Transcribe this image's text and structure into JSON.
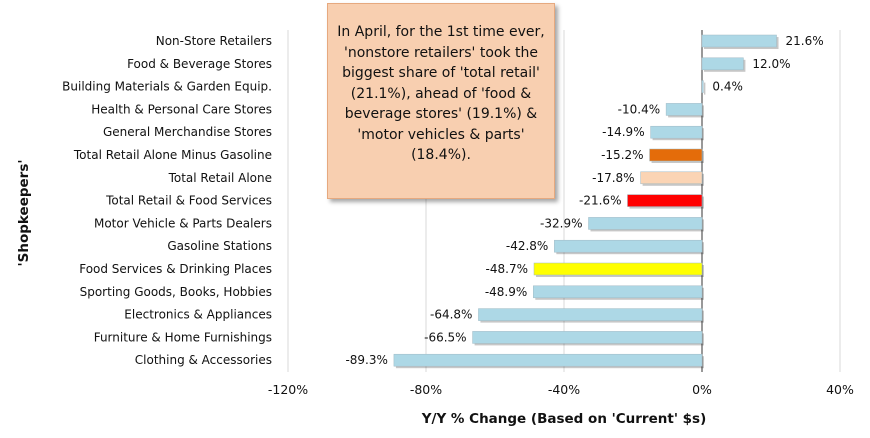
{
  "chart_data": {
    "type": "bar",
    "orientation": "horizontal",
    "categories": [
      "Non-Store Retailers",
      "Food & Beverage Stores",
      "Building Materials & Garden Equip.",
      "Health & Personal Care Stores",
      "General Merchandise Stores",
      "Total Retail Alone Minus Gasoline",
      "Total Retail Alone",
      "Total Retail & Food Services",
      "Motor Vehicle & Parts Dealers",
      "Gasoline Stations",
      "Food Services & Drinking Places",
      "Sporting Goods, Books, Hobbies",
      "Electronics & Appliances",
      "Furniture & Home Furnishings",
      "Clothing & Accessories"
    ],
    "values": [
      21.6,
      12.0,
      0.4,
      -10.4,
      -14.9,
      -15.2,
      -17.8,
      -21.6,
      -32.9,
      -42.8,
      -48.7,
      -48.9,
      -64.8,
      -66.5,
      -89.3
    ],
    "value_labels": [
      "21.6%",
      "12.0%",
      "0.4%",
      "-10.4%",
      "-14.9%",
      "-15.2%",
      "-17.8%",
      "-21.6%",
      "-32.9%",
      "-42.8%",
      "-48.7%",
      "-48.9%",
      "-64.8%",
      "-66.5%",
      "-89.3%"
    ],
    "colors": [
      "#add8e6",
      "#add8e6",
      "#add8e6",
      "#add8e6",
      "#add8e6",
      "#e46c0a",
      "#fbd4b4",
      "#ff0000",
      "#add8e6",
      "#add8e6",
      "#ffff00",
      "#add8e6",
      "#add8e6",
      "#add8e6",
      "#add8e6"
    ],
    "xlim": [
      -120,
      40
    ],
    "xticks": [
      -120,
      -80,
      -40,
      0,
      40
    ],
    "xtick_labels": [
      "-120%",
      "-80%",
      "-40%",
      "0%",
      "40%"
    ],
    "xlabel": "Y/Y % Change (Based on 'Current' $s)",
    "ylabel": "'Shopkeepers'",
    "grid": "vertical",
    "annotation": "In April, for the 1st time ever, 'nonstore retailers' took the biggest share of 'total retail' (21.1%), ahead of 'food & beverage stores' (19.1%) & 'motor vehicles & parts' (18.4%)."
  }
}
